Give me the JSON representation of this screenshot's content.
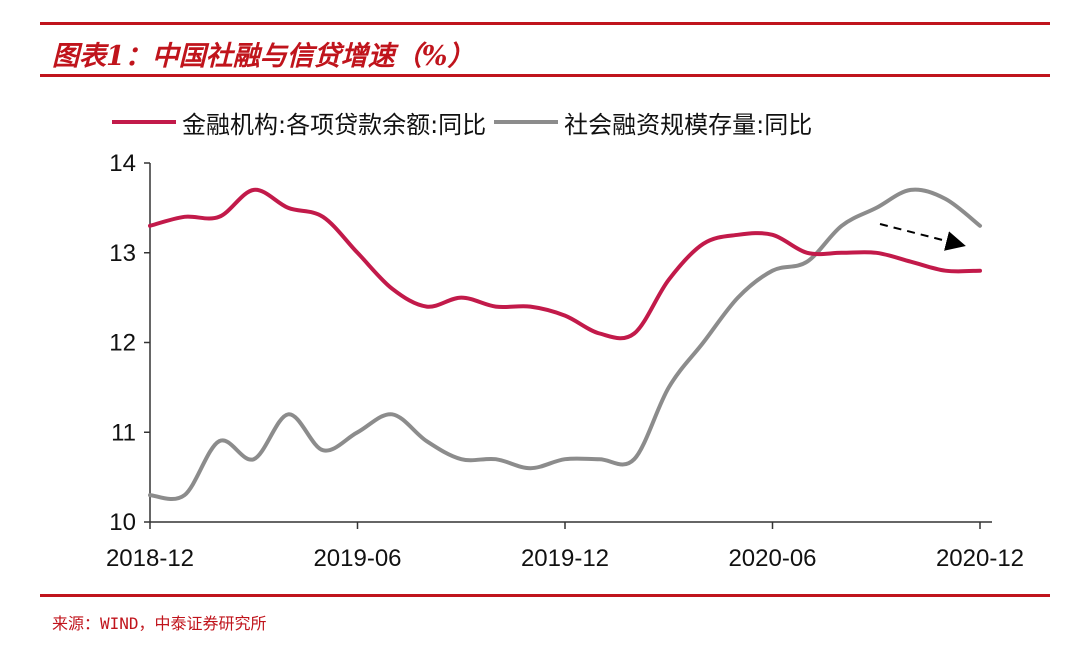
{
  "title": "图表1：中国社融与信贷增速（%）",
  "source": "来源：WIND，中泰证券研究所",
  "colors": {
    "accent": "#c0141c",
    "series_loans": "#c21a4a",
    "series_tsf": "#8c8c8c"
  },
  "chart_data": {
    "type": "line",
    "title": "图表1：中国社融与信贷增速（%）",
    "xlabel": "",
    "ylabel": "",
    "x": [
      "2018-12",
      "2019-01",
      "2019-02",
      "2019-03",
      "2019-04",
      "2019-05",
      "2019-06",
      "2019-07",
      "2019-08",
      "2019-09",
      "2019-10",
      "2019-11",
      "2019-12",
      "2020-01",
      "2020-02",
      "2020-03",
      "2020-04",
      "2020-05",
      "2020-06",
      "2020-07",
      "2020-08",
      "2020-09",
      "2020-10",
      "2020-11",
      "2020-12"
    ],
    "xticks": [
      "2018-12",
      "2019-06",
      "2019-12",
      "2020-06",
      "2020-12"
    ],
    "yticks": [
      "10",
      "11",
      "12",
      "13",
      "14"
    ],
    "ylim": [
      10,
      14
    ],
    "grid": false,
    "legend_position": "top",
    "series": [
      {
        "name": "金融机构:各项贷款余额:同比",
        "values": [
          13.3,
          13.4,
          13.4,
          13.7,
          13.5,
          13.4,
          13.0,
          12.6,
          12.4,
          12.5,
          12.4,
          12.4,
          12.3,
          12.1,
          12.1,
          12.7,
          13.1,
          13.2,
          13.2,
          13.0,
          13.0,
          13.0,
          12.9,
          12.8,
          12.8
        ]
      },
      {
        "name": "社会融资规模存量:同比",
        "values": [
          10.3,
          10.3,
          10.9,
          10.7,
          11.2,
          10.8,
          11.0,
          11.2,
          10.9,
          10.7,
          10.7,
          10.6,
          10.7,
          10.7,
          10.7,
          11.5,
          12.0,
          12.5,
          12.8,
          12.9,
          13.3,
          13.5,
          13.7,
          13.6,
          13.3
        ]
      }
    ],
    "annotation": "trend-arrow-down"
  }
}
